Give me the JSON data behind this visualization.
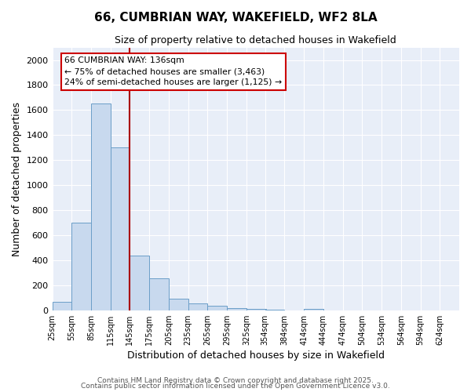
{
  "title_line1": "66, CUMBRIAN WAY, WAKEFIELD, WF2 8LA",
  "title_line2": "Size of property relative to detached houses in Wakefield",
  "xlabel": "Distribution of detached houses by size in Wakefield",
  "ylabel": "Number of detached properties",
  "bar_color": "#c8d9ee",
  "bar_edge_color": "#6b9ec8",
  "bg_color": "#e8eef8",
  "grid_color": "#ffffff",
  "vline_color": "#aa0000",
  "annotation_text": "66 CUMBRIAN WAY: 136sqm\n← 75% of detached houses are smaller (3,463)\n24% of semi-detached houses are larger (1,125) →",
  "annotation_box_color": "#ffffff",
  "annotation_border_color": "#cc0000",
  "bins": [
    25,
    55,
    85,
    115,
    145,
    175,
    205,
    235,
    265,
    295,
    325,
    354,
    384,
    414,
    444,
    474,
    504,
    534,
    564,
    594,
    624
  ],
  "values": [
    65,
    700,
    1650,
    1300,
    440,
    255,
    90,
    55,
    35,
    20,
    10,
    5,
    0,
    12,
    0,
    0,
    0,
    0,
    0,
    0
  ],
  "ylim": [
    0,
    2100
  ],
  "yticks": [
    0,
    200,
    400,
    600,
    800,
    1000,
    1200,
    1400,
    1600,
    1800,
    2000
  ],
  "footnote1": "Contains HM Land Registry data © Crown copyright and database right 2025.",
  "footnote2": "Contains public sector information licensed under the Open Government Licence v3.0."
}
